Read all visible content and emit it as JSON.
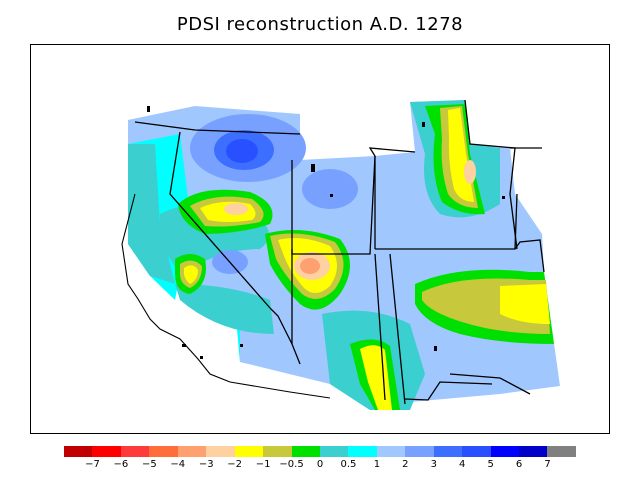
{
  "title": "PDSI reconstruction A.D. 1278",
  "colorbar": {
    "colors": [
      "#c00000",
      "#ff0000",
      "#ff3a3a",
      "#ff6e3a",
      "#ffa070",
      "#ffd0a0",
      "#ffff00",
      "#c8c83c",
      "#00e000",
      "#3ccfcf",
      "#00ffff",
      "#a0c8ff",
      "#78a0ff",
      "#3c6eff",
      "#2850ff",
      "#0000ff",
      "#0000c8",
      "#808080"
    ],
    "tick_labels": [
      "−7",
      "−6",
      "−5",
      "−4",
      "−3",
      "−2",
      "−1",
      "−0.5",
      "0",
      "0.5",
      "1",
      "2",
      "3",
      "4",
      "5",
      "6",
      "7"
    ]
  }
}
